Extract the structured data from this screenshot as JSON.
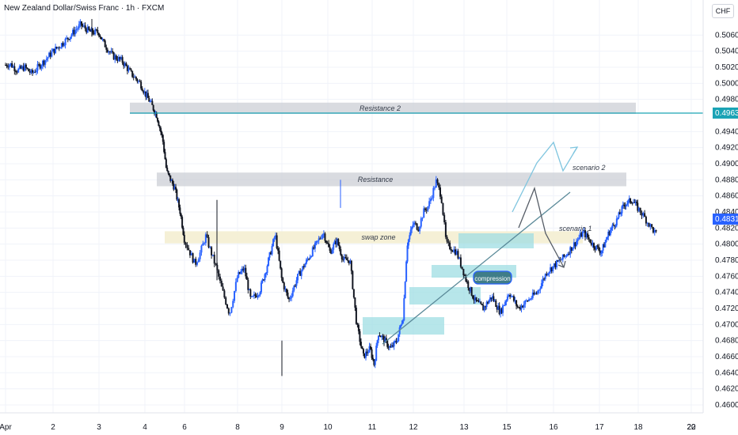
{
  "header": {
    "title": "New Zealand Dollar/Swiss Franc · 1h · FXCM",
    "currency_badge": "CHF"
  },
  "price_axis": {
    "labels": [
      "0.50600",
      "0.50400",
      "0.50200",
      "0.50000",
      "0.49800",
      "0.49400",
      "0.49200",
      "0.49000",
      "0.48800",
      "0.48600",
      "0.48400",
      "0.48200",
      "0.48000",
      "0.47800",
      "0.47600",
      "0.47400",
      "0.47200",
      "0.47000",
      "0.46800",
      "0.46600",
      "0.46400",
      "0.46200",
      "0.46000"
    ],
    "highlight_label": "0.49630",
    "current_price_label": "0.48311"
  },
  "time_axis": {
    "labels": [
      "Apr",
      "2",
      "3",
      "4",
      "6",
      "8",
      "9",
      "10",
      "11",
      "12",
      "13",
      "15",
      "16",
      "17",
      "18",
      "20",
      "22"
    ]
  },
  "zones": {
    "resistance2": "Resistance 2",
    "resistance": "Resistance",
    "swap": "swap zone",
    "compression": "compression",
    "scenario2": "scenario 2",
    "scenario1": "scenario 1"
  },
  "colors": {
    "up_candle": "#2962ff",
    "down_candle": "#131722",
    "resistance_zone": "#c9ccd3",
    "swap_zone": "#f3edcf",
    "compression_zone": "#9fdde3",
    "hline": "#1aa3b5",
    "trendline": "#5b8a99",
    "scenario_up": "#7fc5df",
    "scenario_down": "#555c66"
  },
  "chart_data": {
    "type": "candlestick",
    "symbol": "New Zealand Dollar/Swiss Franc",
    "timeframe": "1h",
    "source": "FXCM",
    "ylim": [
      0.4598,
      0.5082
    ],
    "horizontal_line": 0.4963,
    "current_price": 0.48311,
    "zones": [
      {
        "label": "Resistance 2",
        "y_range": [
          0.4962,
          0.4976
        ]
      },
      {
        "label": "Resistance",
        "y_range": [
          0.4872,
          0.4889
        ]
      },
      {
        "label": "swap zone",
        "y_range": [
          0.4801,
          0.4816
        ]
      }
    ],
    "close_path": [
      [
        0.0,
        0.5023
      ],
      [
        0.1,
        0.5024
      ],
      [
        0.25,
        0.5016
      ],
      [
        0.4,
        0.502
      ],
      [
        0.55,
        0.5012
      ],
      [
        0.7,
        0.5021
      ],
      [
        0.85,
        0.503
      ],
      [
        1.0,
        0.504
      ],
      [
        1.15,
        0.5047
      ],
      [
        1.3,
        0.5055
      ],
      [
        1.45,
        0.5064
      ],
      [
        1.6,
        0.5073
      ],
      [
        1.8,
        0.5064
      ],
      [
        2.0,
        0.5063
      ],
      [
        2.1,
        0.505
      ],
      [
        2.3,
        0.5034
      ],
      [
        2.5,
        0.5028
      ],
      [
        2.7,
        0.5012
      ],
      [
        2.9,
        0.5
      ],
      [
        3.0,
        0.4988
      ],
      [
        3.15,
        0.4975
      ],
      [
        3.3,
        0.496
      ],
      [
        3.45,
        0.493
      ],
      [
        3.55,
        0.489
      ],
      [
        3.75,
        0.487
      ],
      [
        3.9,
        0.4838
      ],
      [
        4.0,
        0.4805
      ],
      [
        4.1,
        0.479
      ],
      [
        4.2,
        0.4775
      ],
      [
        4.3,
        0.479
      ],
      [
        4.4,
        0.481
      ],
      [
        4.5,
        0.479
      ],
      [
        4.6,
        0.477
      ],
      [
        4.7,
        0.4745
      ],
      [
        4.85,
        0.4713
      ],
      [
        5.0,
        0.476
      ],
      [
        5.15,
        0.477
      ],
      [
        5.3,
        0.473
      ],
      [
        5.5,
        0.4742
      ],
      [
        5.65,
        0.477
      ],
      [
        5.85,
        0.4812
      ],
      [
        6.0,
        0.4755
      ],
      [
        6.15,
        0.473
      ],
      [
        6.35,
        0.476
      ],
      [
        6.55,
        0.478
      ],
      [
        6.75,
        0.48
      ],
      [
        6.9,
        0.4815
      ],
      [
        7.05,
        0.479
      ],
      [
        7.2,
        0.4805
      ],
      [
        7.35,
        0.478
      ],
      [
        7.5,
        0.478
      ],
      [
        7.65,
        0.47
      ],
      [
        7.8,
        0.466
      ],
      [
        7.95,
        0.467
      ],
      [
        8.05,
        0.465
      ],
      [
        8.15,
        0.469
      ],
      [
        8.3,
        0.468
      ],
      [
        8.45,
        0.467
      ],
      [
        8.6,
        0.468
      ],
      [
        8.75,
        0.471
      ],
      [
        8.85,
        0.48
      ],
      [
        9.0,
        0.4826
      ],
      [
        9.1,
        0.482
      ],
      [
        9.2,
        0.484
      ],
      [
        9.3,
        0.4848
      ],
      [
        9.45,
        0.4878
      ],
      [
        9.55,
        0.486
      ],
      [
        9.65,
        0.48
      ],
      [
        9.85,
        0.479
      ],
      [
        10.05,
        0.4755
      ],
      [
        10.25,
        0.473
      ],
      [
        10.45,
        0.472
      ],
      [
        10.65,
        0.4735
      ],
      [
        10.85,
        0.4715
      ],
      [
        11.05,
        0.474
      ],
      [
        11.25,
        0.472
      ],
      [
        11.45,
        0.473
      ],
      [
        11.65,
        0.474
      ],
      [
        11.85,
        0.4765
      ],
      [
        12.05,
        0.4775
      ],
      [
        12.25,
        0.4785
      ],
      [
        12.45,
        0.48
      ],
      [
        12.65,
        0.4815
      ],
      [
        12.85,
        0.48
      ],
      [
        13.05,
        0.479
      ],
      [
        13.25,
        0.4815
      ],
      [
        13.45,
        0.483
      ],
      [
        13.65,
        0.485
      ],
      [
        13.85,
        0.4855
      ],
      [
        14.05,
        0.484
      ],
      [
        14.2,
        0.4825
      ],
      [
        14.35,
        0.4811
      ]
    ],
    "x_ticks": [
      {
        "label": "Apr",
        "i": 0.0
      },
      {
        "label": "2",
        "i": 1.0
      },
      {
        "label": "3",
        "i": 2.0
      },
      {
        "label": "4",
        "i": 3.0
      },
      {
        "label": "6",
        "i": 4.0
      },
      {
        "label": "8",
        "i": 5.0
      },
      {
        "label": "9",
        "i": 6.0
      },
      {
        "label": "10",
        "i": 7.0
      },
      {
        "label": "11",
        "i": 8.0
      },
      {
        "label": "12",
        "i": 9.0
      },
      {
        "label": "13",
        "i": 10.0
      },
      {
        "label": "15",
        "i": 11.0
      },
      {
        "label": "16",
        "i": 12.0
      },
      {
        "label": "17",
        "i": 13.0
      },
      {
        "label": "18",
        "i": 14.0
      },
      {
        "label": "20",
        "i": 15.0
      },
      {
        "label": "22",
        "i": 16.0
      }
    ]
  }
}
